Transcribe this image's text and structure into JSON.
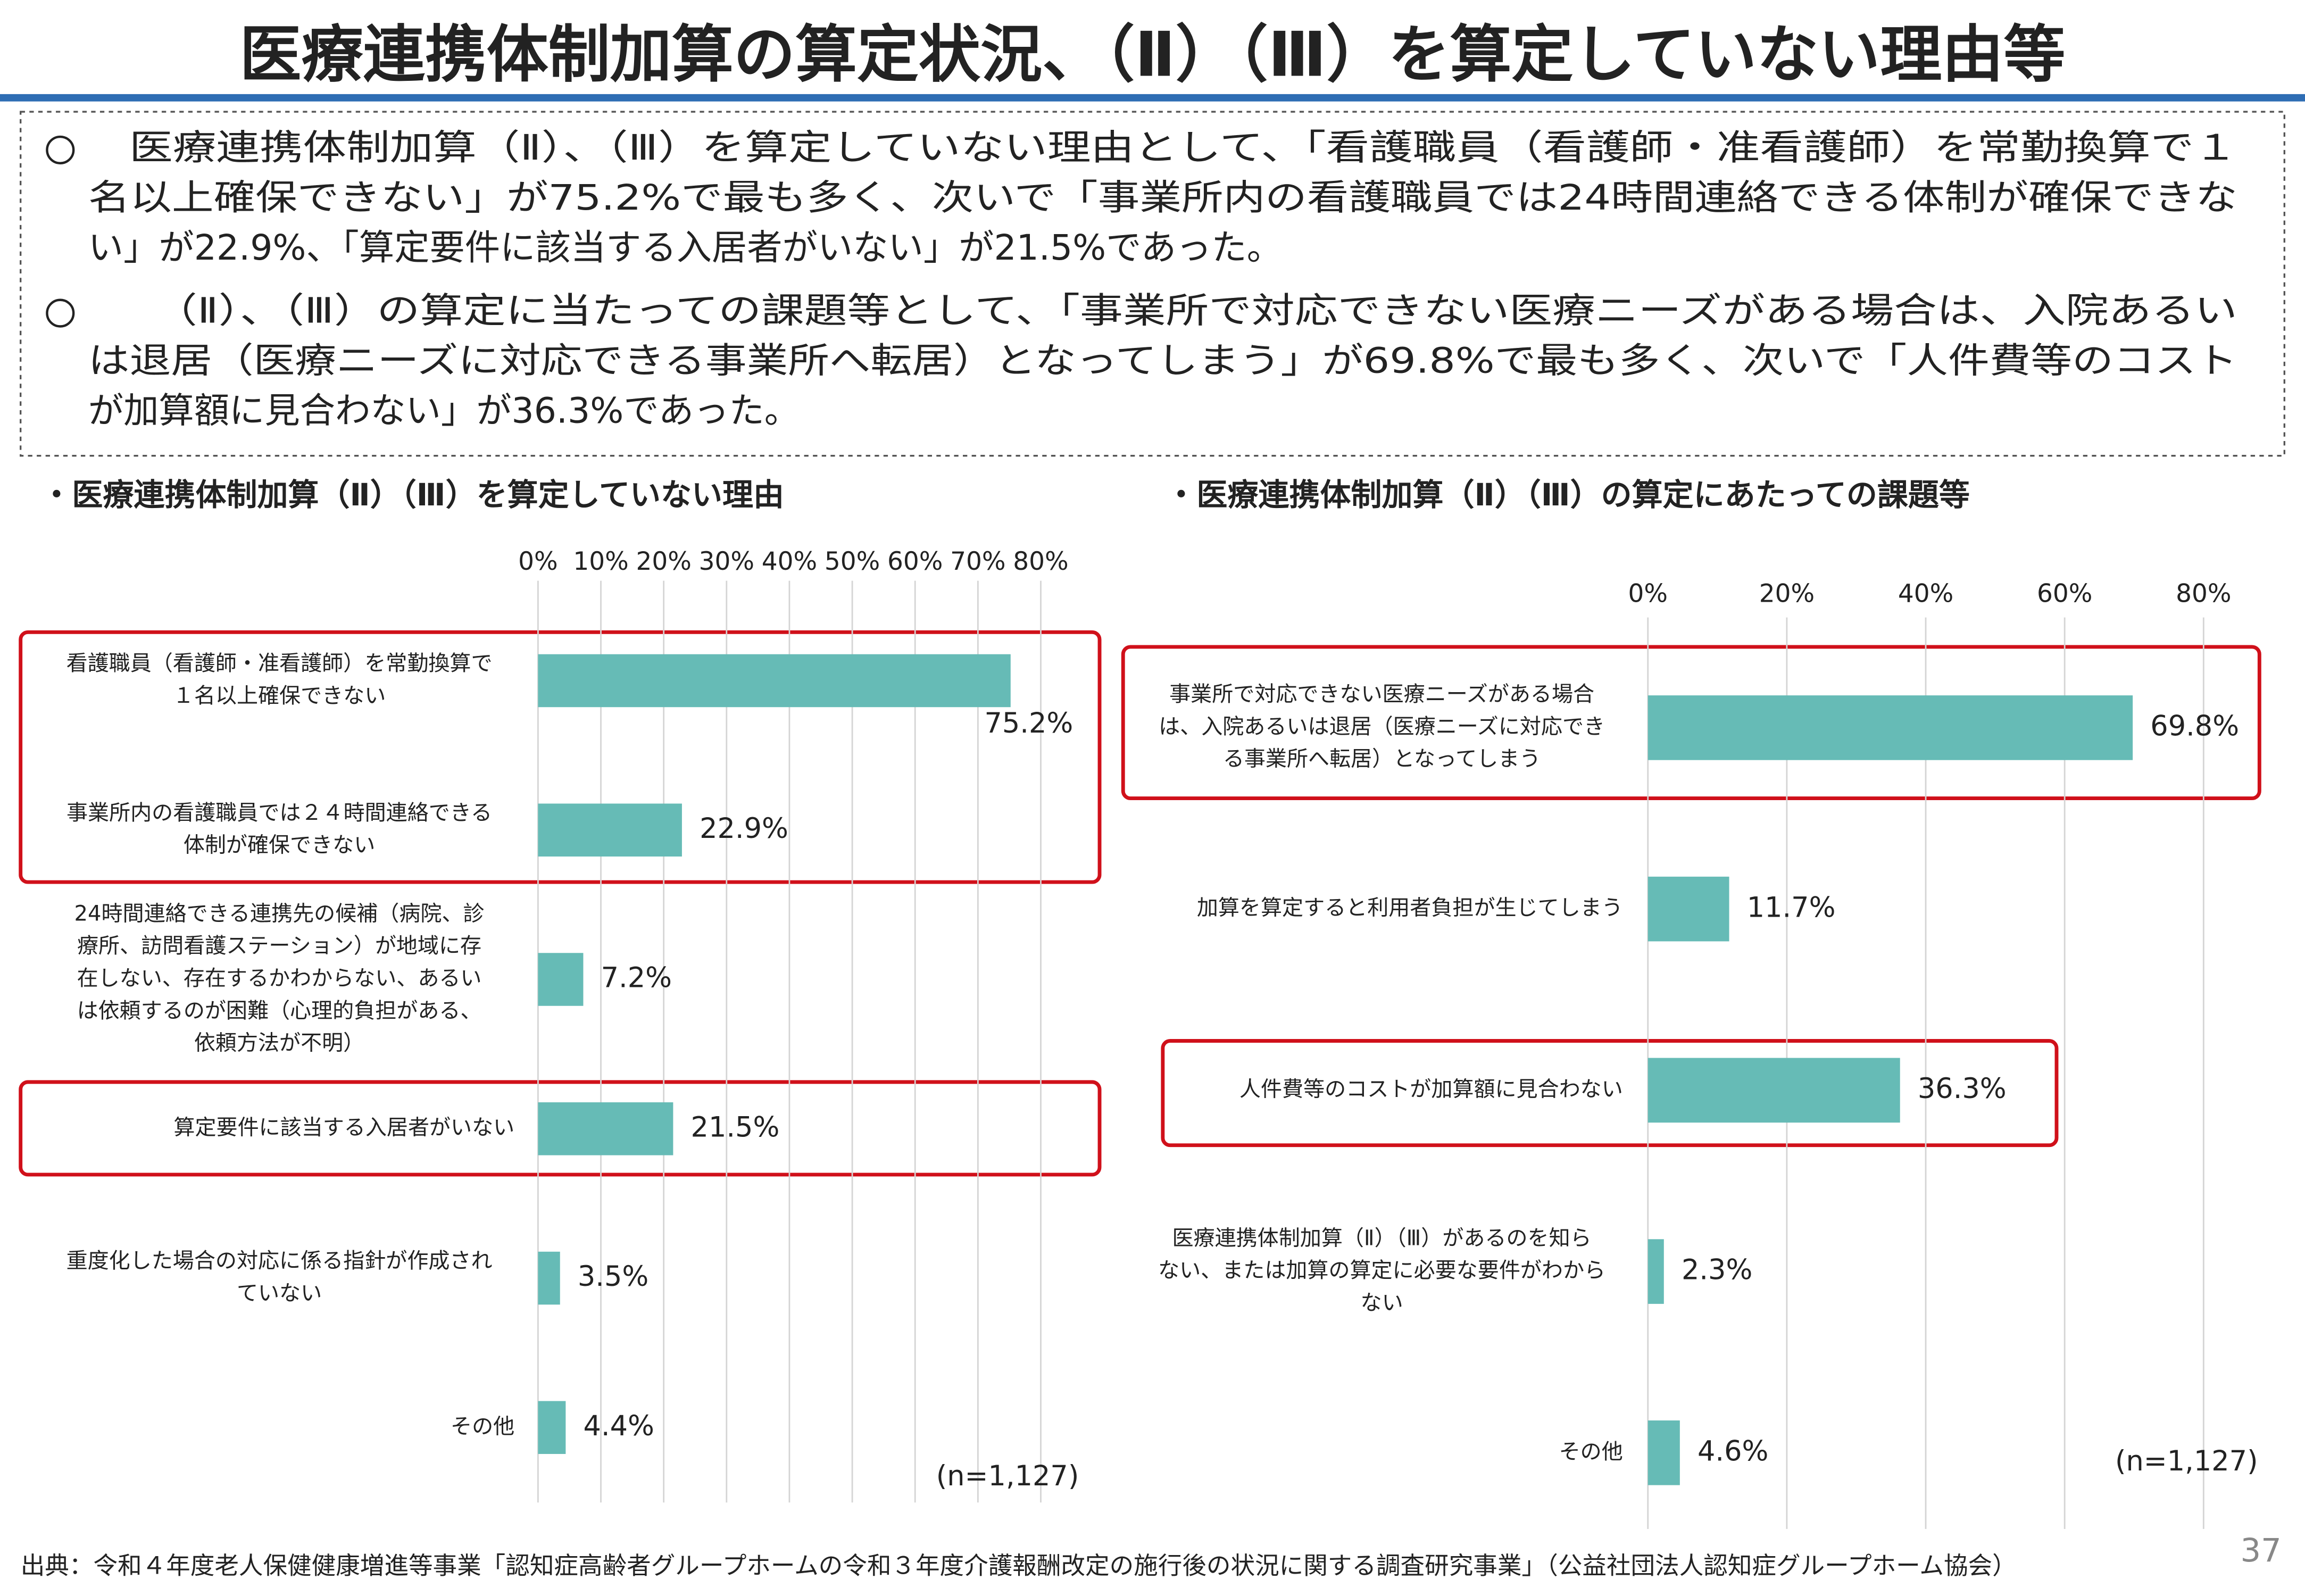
{
  "page_title": "医療連携体制加算の算定状況、（Ⅱ）（Ⅲ）を算定していない理由等",
  "bullets": [
    "医療連携体制加算（Ⅱ）、（Ⅲ）を算定していない理由として、「看護職員（看護師・准看護師）を常勤換算で１\n名以上確保できない」が75.2%で最も多く、次いで「事業所内の看護職員では24時間連絡できる体制が確保できな\nい」が22.9%、「算定要件に該当する入居者がいない」が21.5%であった。",
    "（Ⅱ）、（Ⅲ）の算定に当たっての課題等として、「事業所で対応できない医療ニーズがある場合は、入院あるい\nは退居（医療ニーズに対応できる事業所へ転居）となってしまう」が69.8%で最も多く、次いで「人件費等のコスト\nが加算額に見合わない」が36.3%であった。"
  ],
  "chart_data": [
    {
      "type": "bar",
      "orientation": "horizontal",
      "title": "・医療連携体制加算（Ⅱ）（Ⅲ）を算定していない理由",
      "categories": [
        "看護職員（看護師・准看護師）を常勤換算で\n１名以上確保できない",
        "事業所内の看護職員では２４時間連絡できる\n体制が確保できない",
        "24時間連絡できる連携先の候補（病院、診\n療所、訪問看護ステーション）が地域に存\n在しない、存在するかわからない、あるい\nは依頼するのが困難（心理的負担がある、\n依頼方法が不明）",
        "算定要件に該当する入居者がいない",
        "重度化した場合の対応に係る指針が作成され\nていない",
        "その他"
      ],
      "values": [
        75.2,
        22.9,
        7.2,
        21.5,
        3.5,
        4.4
      ],
      "value_labels": [
        "75.2%",
        "22.9%",
        "7.2%",
        "21.5%",
        "3.5%",
        "4.4%"
      ],
      "color": "#66bbb6",
      "xlim": [
        0,
        80
      ],
      "xticks": [
        {
          "value": 0,
          "label": "0%"
        },
        {
          "value": 10,
          "label": "10%"
        },
        {
          "value": 20,
          "label": "20%"
        },
        {
          "value": 30,
          "label": "30%"
        },
        {
          "value": 40,
          "label": "40%"
        },
        {
          "value": 50,
          "label": "50%"
        },
        {
          "value": 60,
          "label": "60%"
        },
        {
          "value": 70,
          "label": "70%"
        },
        {
          "value": 80,
          "label": "80%"
        }
      ],
      "grid": true,
      "note": "(n=1,127)"
    },
    {
      "type": "bar",
      "orientation": "horizontal",
      "title": "・医療連携体制加算（Ⅱ）（Ⅲ）の算定にあたっての課題等",
      "categories": [
        "事業所で対応できない医療ニーズがある場合\nは、入院あるいは退居（医療ニーズに対応でき\nる事業所へ転居）となってしまう",
        "加算を算定すると利用者負担が生じてしまう",
        "人件費等のコストが加算額に見合わない",
        "医療連携体制加算（Ⅱ）（Ⅲ）があるのを知ら\nない、または加算の算定に必要な要件がわから\nない",
        "その他"
      ],
      "values": [
        69.8,
        11.7,
        36.3,
        2.3,
        4.6
      ],
      "value_labels": [
        "69.8%",
        "11.7%",
        "36.3%",
        "2.3%",
        "4.6%"
      ],
      "color": "#66bbb6",
      "xlim": [
        0,
        80
      ],
      "xticks": [
        {
          "value": 0,
          "label": "0%"
        },
        {
          "value": 20,
          "label": "20%"
        },
        {
          "value": 40,
          "label": "40%"
        },
        {
          "value": 60,
          "label": "60%"
        },
        {
          "value": 80,
          "label": "80%"
        }
      ],
      "grid": true,
      "note": "(n=1,127)"
    }
  ],
  "source": "出典：令和４年度老人保健健康増進等事業「認知症高齢者グループホームの令和３年度介護報酬改定の施行後の状況に関する調査研究事業」（公益社団法人認知症グループホーム協会）",
  "page_number": "37"
}
